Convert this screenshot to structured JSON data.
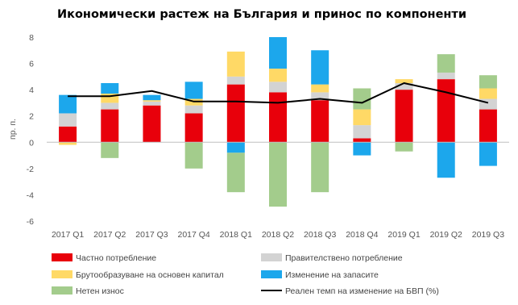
{
  "chart_data": {
    "type": "bar",
    "stacked": true,
    "title": "Икономически растеж на България и принос по компоненти",
    "ylabel": "пр. п.",
    "xlabel": "",
    "ylim": [
      -6,
      8
    ],
    "yticks": [
      -6,
      -4,
      -2,
      0,
      2,
      4,
      6,
      8
    ],
    "grid": false,
    "legend_position": "bottom",
    "categories": [
      "2017 Q1",
      "2017 Q2",
      "2017 Q3",
      "2017 Q4",
      "2018 Q1",
      "2018 Q2",
      "2018 Q3",
      "2018 Q4",
      "2019 Q1",
      "2019 Q2",
      "2019 Q3"
    ],
    "series": [
      {
        "name": "Частно потребление",
        "kind": "bar",
        "color": "#e8000b",
        "values": [
          1.2,
          2.5,
          2.8,
          2.2,
          4.4,
          3.8,
          3.2,
          0.3,
          4.0,
          4.8,
          2.5
        ]
      },
      {
        "name": "Правителствено потребление",
        "kind": "bar",
        "color": "#d3d3d3",
        "values": [
          1.0,
          0.5,
          0.3,
          0.6,
          0.6,
          0.8,
          0.6,
          1.0,
          0.5,
          0.5,
          0.8
        ]
      },
      {
        "name": "Брутообразуване на основен капитал",
        "kind": "bar",
        "color": "#ffd966",
        "values": [
          -0.2,
          0.7,
          0.1,
          0.5,
          1.9,
          1.0,
          0.6,
          1.2,
          0.3,
          0.0,
          0.8
        ]
      },
      {
        "name": "Изменение на запасите",
        "kind": "bar",
        "color": "#1ca7ec",
        "values": [
          1.4,
          0.8,
          0.4,
          1.3,
          -0.8,
          2.4,
          2.6,
          -1.0,
          0.0,
          -2.7,
          -1.8
        ]
      },
      {
        "name": "Нетен износ",
        "kind": "bar",
        "color": "#a3cc8c",
        "values": [
          0.0,
          -1.2,
          0.0,
          -2.0,
          -3.0,
          -4.9,
          -3.8,
          1.6,
          -0.7,
          1.4,
          1.0
        ]
      },
      {
        "name": "Реален темп на изменение на БВП (%)",
        "kind": "line",
        "color": "#000000",
        "values": [
          3.5,
          3.5,
          3.9,
          3.1,
          3.1,
          3.0,
          3.3,
          3.0,
          4.5,
          3.8,
          3.0
        ]
      }
    ]
  }
}
